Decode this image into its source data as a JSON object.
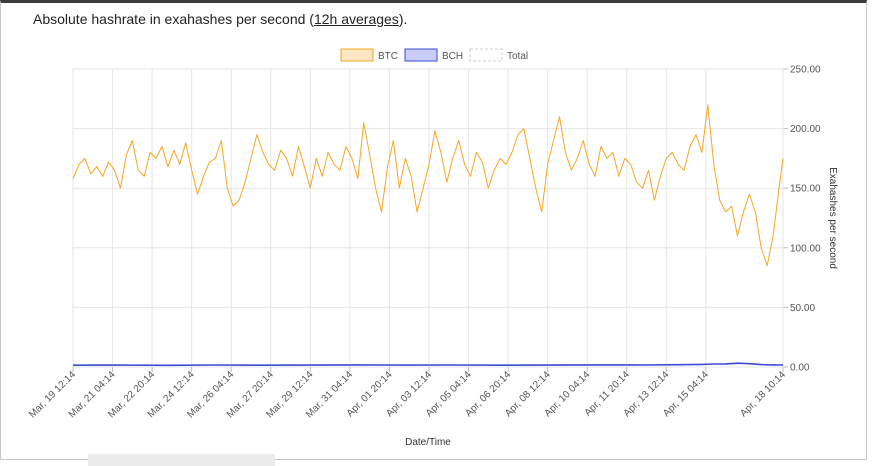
{
  "header": {
    "title_prefix": "Absolute hashrate in exahashes per second (",
    "title_link": "12h averages",
    "title_suffix": ")."
  },
  "chart_data": {
    "type": "line",
    "title": "Absolute hashrate in exahashes per second (12h averages).",
    "xlabel": "Date/Time",
    "ylabel": "Exahashes per second",
    "ylim": [
      0,
      250
    ],
    "y_ticks": [
      "0.00",
      "50.00",
      "100.00",
      "150.00",
      "200.00",
      "250.00"
    ],
    "y_tick_values": [
      0,
      50,
      100,
      150,
      200,
      250
    ],
    "y_axis_side": "right",
    "grid": true,
    "legend_position": "top-center",
    "x_tick_labels": [
      "Mar, 19 12:14",
      "Mar, 21 04:14",
      "Mar, 22 20:14",
      "Mar, 24 12:14",
      "Mar, 26 04:14",
      "Mar, 27 20:14",
      "Mar, 29 12:14",
      "Mar, 31 04:14",
      "Apr, 01 20:14",
      "Apr, 03 12:14",
      "Apr, 05 04:14",
      "Apr, 06 20:14",
      "Apr, 08 12:14",
      "Apr, 10 04:14",
      "Apr, 11 20:14",
      "Apr, 13 12:14",
      "Apr, 15 04:14",
      "Apr, 18 10:14"
    ],
    "x_tick_days": [
      0,
      1.667,
      3.333,
      5,
      6.667,
      8.333,
      10,
      11.667,
      13.333,
      15,
      16.667,
      18.333,
      20,
      21.667,
      23.333,
      25,
      26.667,
      29.917
    ],
    "x_range_days": [
      0,
      29.917
    ],
    "series": [
      {
        "name": "BTC",
        "color": "#f5a623",
        "days": [
          0,
          0.25,
          0.5,
          0.75,
          1,
          1.25,
          1.5,
          1.75,
          2,
          2.25,
          2.5,
          2.75,
          3,
          3.25,
          3.5,
          3.75,
          4,
          4.25,
          4.5,
          4.75,
          5,
          5.25,
          5.5,
          5.75,
          6,
          6.25,
          6.5,
          6.75,
          7,
          7.25,
          7.5,
          7.75,
          8,
          8.25,
          8.5,
          8.75,
          9,
          9.25,
          9.5,
          9.75,
          10,
          10.25,
          10.5,
          10.75,
          11,
          11.25,
          11.5,
          11.75,
          12,
          12.25,
          12.5,
          12.75,
          13,
          13.25,
          13.5,
          13.75,
          14,
          14.25,
          14.5,
          14.75,
          15,
          15.25,
          15.5,
          15.75,
          16,
          16.25,
          16.5,
          16.75,
          17,
          17.25,
          17.5,
          17.75,
          18,
          18.25,
          18.5,
          18.75,
          19,
          19.25,
          19.5,
          19.75,
          20,
          20.25,
          20.5,
          20.75,
          21,
          21.25,
          21.5,
          21.75,
          22,
          22.25,
          22.5,
          22.75,
          23,
          23.25,
          23.5,
          23.75,
          24,
          24.25,
          24.5,
          24.75,
          25,
          25.25,
          25.5,
          25.75,
          26,
          26.25,
          26.5,
          26.75,
          27,
          27.25,
          27.5,
          27.75,
          28,
          28.25,
          28.5,
          28.75,
          29,
          29.25,
          29.5,
          29.75,
          29.917
        ],
        "values": [
          158,
          170,
          175,
          162,
          168,
          160,
          172,
          165,
          150,
          178,
          190,
          165,
          160,
          180,
          175,
          185,
          168,
          182,
          170,
          188,
          165,
          145,
          160,
          172,
          175,
          190,
          150,
          135,
          140,
          155,
          175,
          195,
          180,
          170,
          165,
          182,
          175,
          160,
          185,
          168,
          150,
          175,
          160,
          180,
          170,
          165,
          185,
          175,
          158,
          205,
          178,
          150,
          130,
          168,
          190,
          150,
          175,
          160,
          130,
          150,
          170,
          198,
          180,
          155,
          175,
          190,
          170,
          160,
          180,
          172,
          150,
          165,
          175,
          170,
          180,
          195,
          200,
          175,
          150,
          130,
          170,
          190,
          210,
          180,
          165,
          175,
          190,
          170,
          160,
          185,
          175,
          180,
          160,
          175,
          170,
          155,
          150,
          165,
          140,
          160,
          175,
          180,
          170,
          165,
          185,
          195,
          180,
          220,
          170,
          140,
          130,
          135,
          110,
          130,
          145,
          130,
          100,
          85,
          110,
          150,
          175
        ]
      },
      {
        "name": "BCH",
        "color": "#3b4bd6",
        "days": [
          0,
          2,
          4,
          6,
          8,
          10,
          12,
          14,
          16,
          18,
          20,
          22,
          24,
          25.5,
          26.5,
          27,
          27.5,
          28,
          28.5,
          29,
          29.5,
          29.917
        ],
        "values": [
          1.5,
          1.6,
          1.4,
          1.7,
          1.5,
          1.6,
          1.8,
          1.6,
          1.7,
          1.5,
          1.6,
          1.8,
          1.7,
          1.9,
          2.2,
          2.5,
          2.6,
          3.2,
          2.8,
          2.0,
          1.8,
          1.7
        ]
      },
      {
        "name": "Total",
        "color": "#d8d8d8",
        "days": [],
        "values": []
      }
    ]
  }
}
